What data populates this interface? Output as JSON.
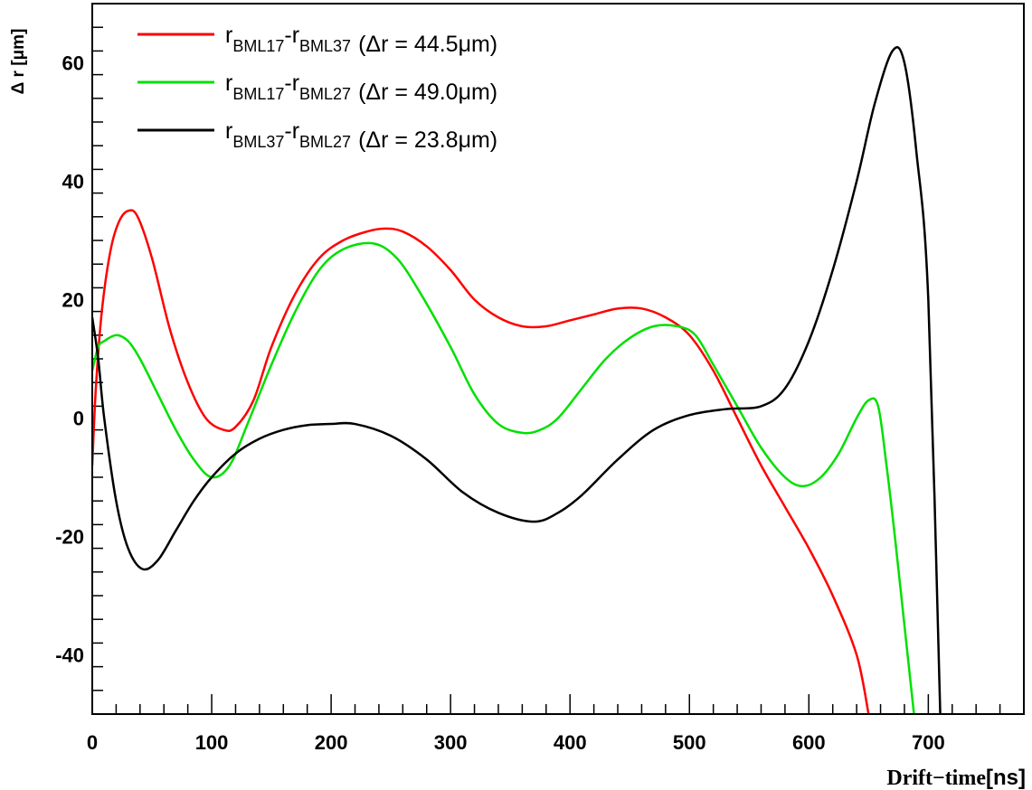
{
  "chart_data": {
    "type": "line",
    "xlabel_main": "Drift−time",
    "xlabel_unit": "[ns]",
    "ylabel": "Δ r [μm]",
    "xlim": [
      0,
      780
    ],
    "ylim": [
      -50,
      70
    ],
    "xticks": [
      0,
      100,
      200,
      300,
      400,
      500,
      600,
      700
    ],
    "yticks": [
      -40,
      -20,
      0,
      20,
      40,
      60
    ],
    "grid": false,
    "legend_position": "top-left",
    "series": [
      {
        "color": "#ff0000",
        "legend": {
          "r1": "r",
          "sub1": "BML17",
          "sep": "-",
          "r2": "r",
          "sub2": "BML37",
          "dr": "(Δr = 44.5μm)"
        },
        "x": [
          0,
          3,
          8,
          15,
          22,
          30,
          38,
          50,
          65,
          80,
          95,
          110,
          120,
          135,
          150,
          170,
          190,
          210,
          230,
          245,
          260,
          280,
          300,
          320,
          340,
          360,
          380,
          400,
          420,
          440,
          460,
          480,
          500,
          520,
          540,
          560,
          580,
          600,
          620,
          640,
          650
        ],
        "y": [
          -8,
          5,
          18,
          28,
          33,
          35,
          34,
          27,
          15,
          6,
          0,
          -2,
          -1.5,
          3,
          12,
          21,
          27,
          30,
          31.5,
          32,
          31.5,
          29,
          25,
          20,
          17,
          15.5,
          15.5,
          16.5,
          17.5,
          18.5,
          18.5,
          17,
          14,
          8,
          0,
          -8,
          -15,
          -22,
          -30,
          -40,
          -50
        ]
      },
      {
        "color": "#00e000",
        "legend": {
          "r1": "r",
          "sub1": "BML17",
          "sep": "-",
          "r2": "r",
          "sub2": "BML27",
          "dr": "(Δr = 49.0μm)"
        },
        "x": [
          0,
          5,
          10,
          20,
          30,
          40,
          55,
          70,
          85,
          100,
          115,
          130,
          150,
          170,
          190,
          210,
          235,
          255,
          275,
          300,
          320,
          340,
          360,
          375,
          390,
          410,
          430,
          450,
          470,
          490,
          505,
          520,
          540,
          560,
          580,
          595,
          610,
          625,
          640,
          650,
          658,
          665,
          672,
          680,
          688
        ],
        "y": [
          8,
          12,
          13,
          14,
          13,
          10,
          4,
          -2,
          -7,
          -10,
          -8,
          -1,
          9,
          18,
          25,
          28.5,
          29.5,
          27,
          21,
          12,
          4,
          -1,
          -2.5,
          -2,
          0,
          5,
          10,
          13.5,
          15.5,
          15.5,
          14,
          9,
          2,
          -5,
          -10,
          -11.5,
          -10,
          -6,
          0,
          3,
          2,
          -8,
          -20,
          -35,
          -50
        ]
      },
      {
        "color": "#000000",
        "legend": {
          "r1": "r",
          "sub1": "BML37",
          "sep": "-",
          "r2": "r",
          "sub2": "BML27",
          "dr": "(Δr = 23.8μm)"
        },
        "x": [
          0,
          5,
          10,
          20,
          30,
          42,
          55,
          70,
          85,
          100,
          120,
          140,
          160,
          180,
          200,
          220,
          250,
          280,
          310,
          340,
          370,
          390,
          410,
          440,
          470,
          500,
          530,
          560,
          580,
          600,
          620,
          640,
          655,
          670,
          680,
          690,
          700,
          710
        ],
        "y": [
          17,
          10,
          0,
          -14,
          -22,
          -25.5,
          -24,
          -19,
          -14,
          -10,
          -6,
          -3.5,
          -2,
          -1.2,
          -1,
          -1,
          -3,
          -7,
          -12.5,
          -16,
          -17.5,
          -16,
          -13,
          -7,
          -2,
          0.5,
          1.5,
          2,
          5,
          13,
          25,
          40,
          53,
          62,
          60,
          45,
          20,
          -50
        ]
      }
    ]
  }
}
